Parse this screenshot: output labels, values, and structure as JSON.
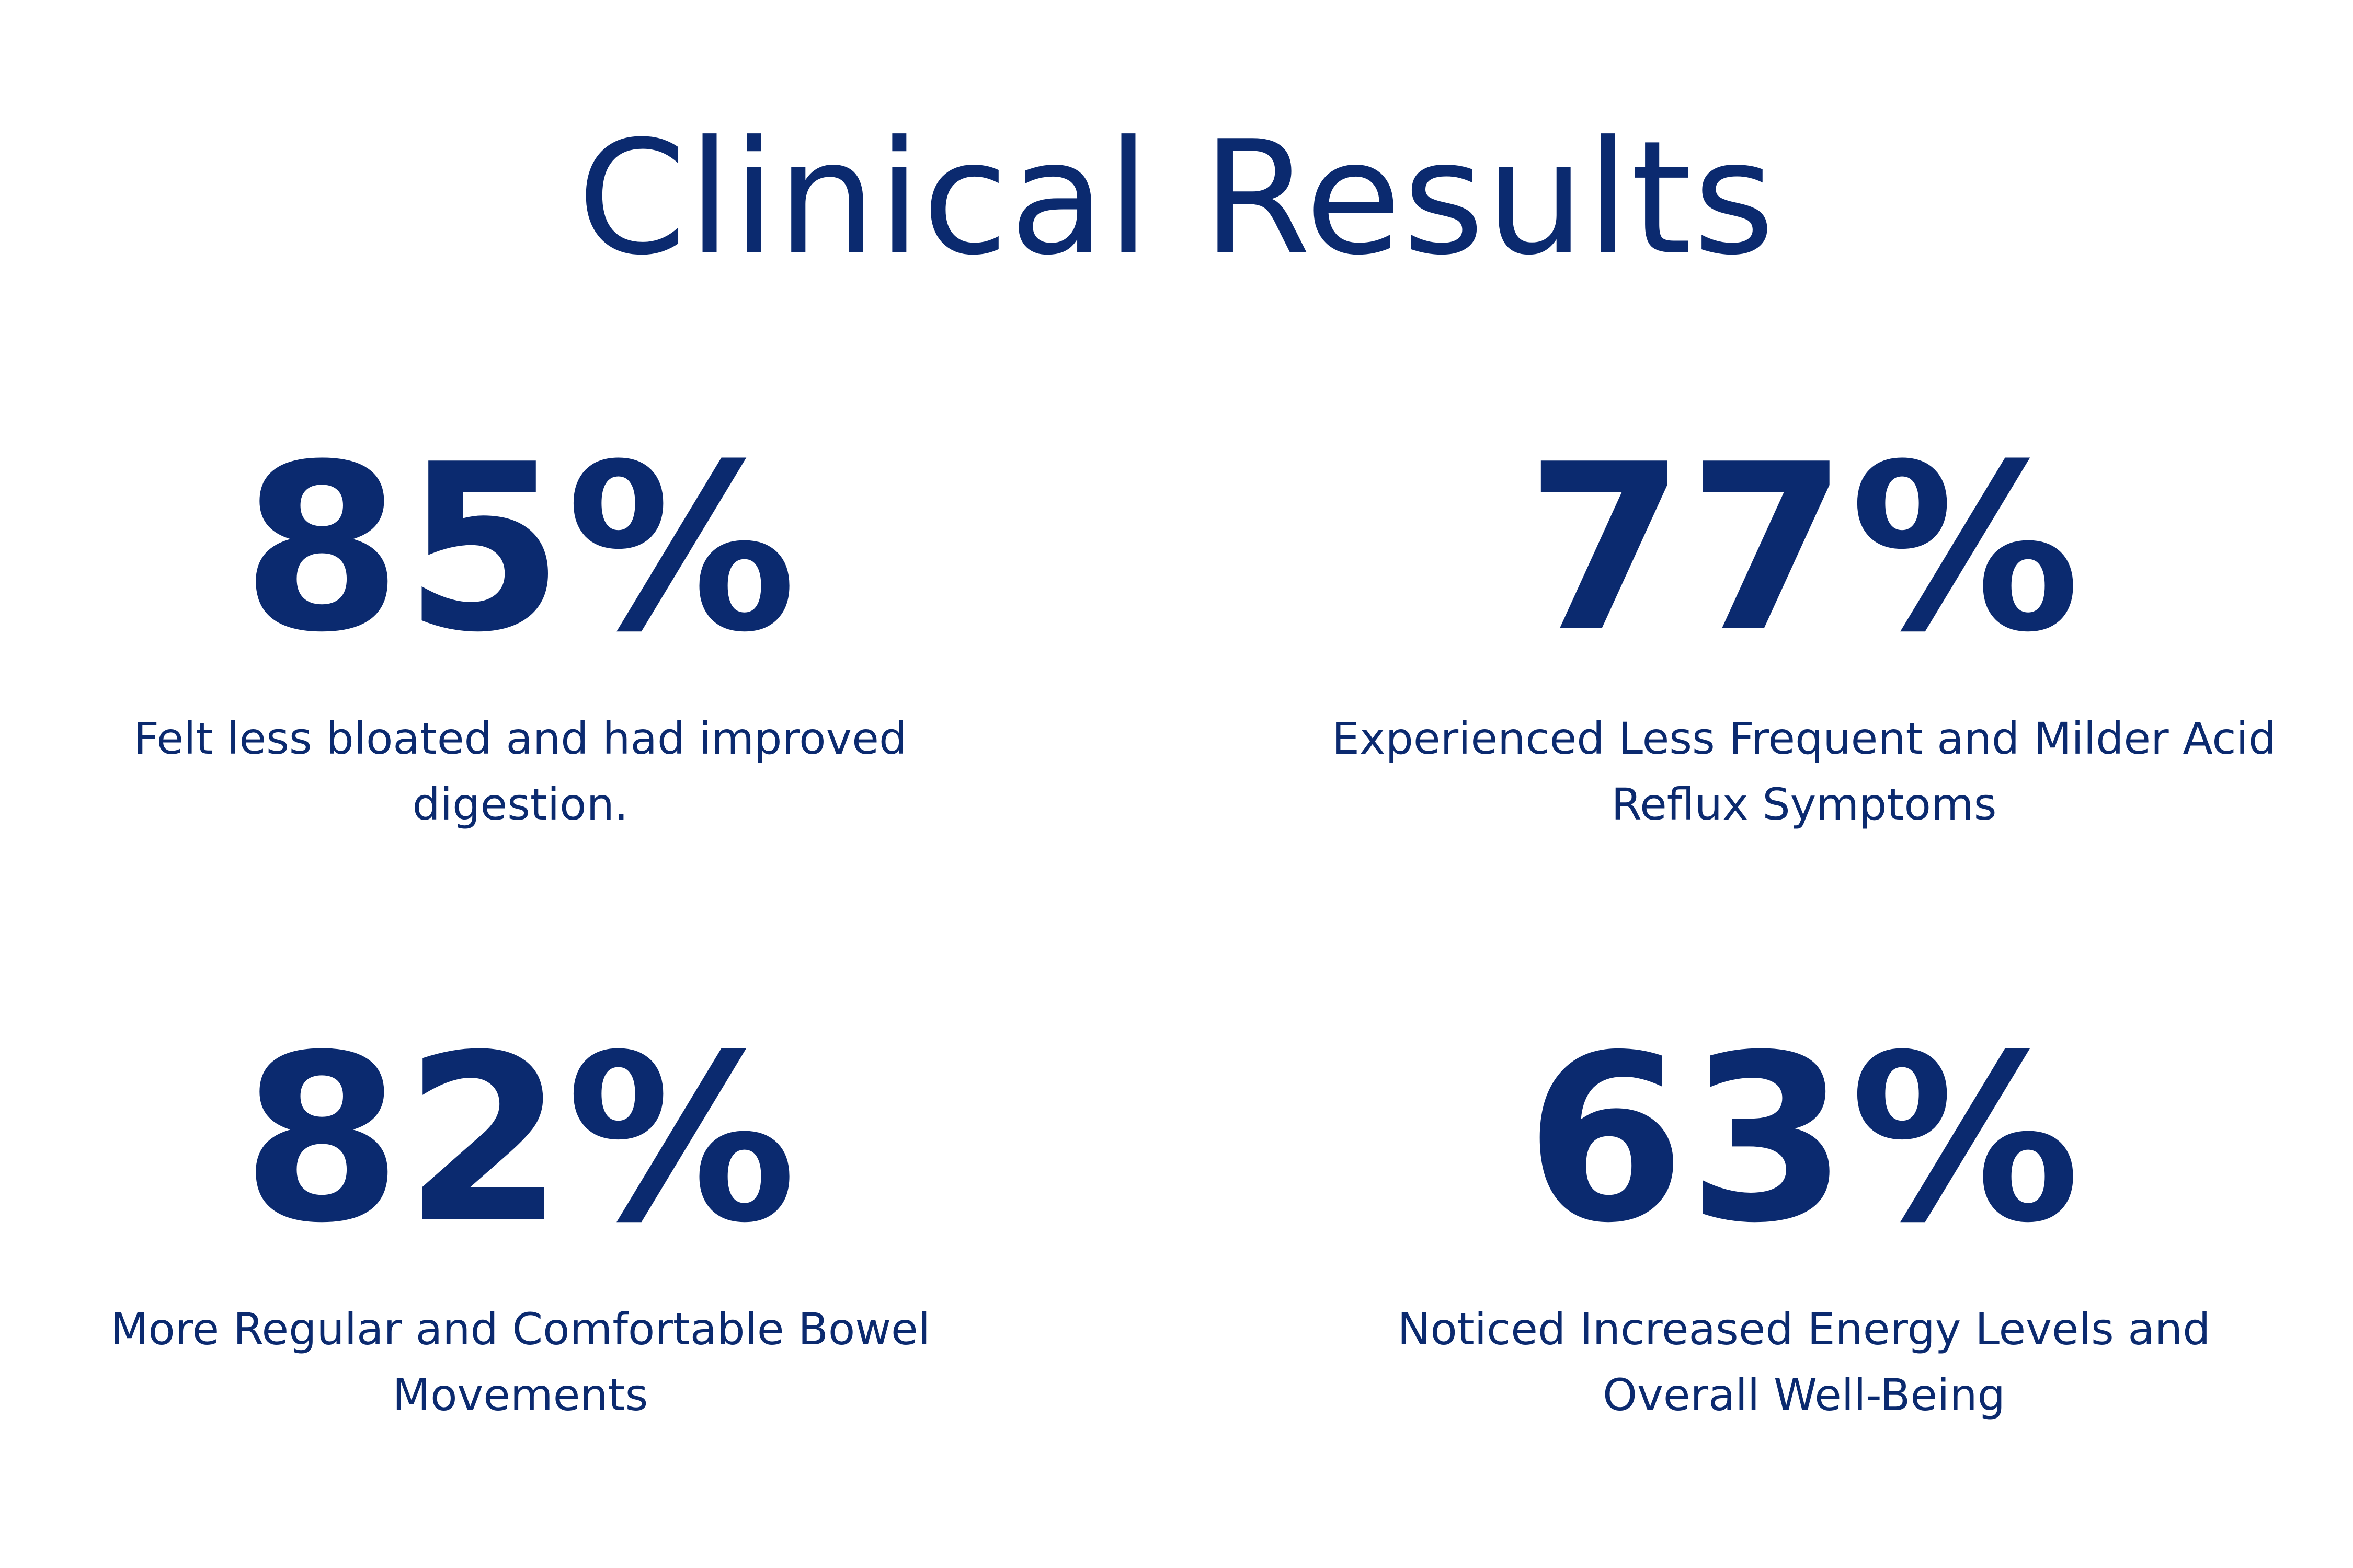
{
  "title": "Clinical Results",
  "stats": [
    {
      "value": "85%",
      "description": [
        "Felt less bloated and had improved",
        "digestion."
      ]
    },
    {
      "value": "77%",
      "description": [
        "Experienced Less Frequent and Milder Acid",
        "Reflux Symptoms"
      ]
    },
    {
      "value": "82%",
      "description": [
        "More Regular and Comfortable Bowel",
        "Movements"
      ]
    },
    {
      "value": "63%",
      "description": [
        "Noticed Increased Energy Levels and",
        "Overall Well-Being"
      ]
    }
  ]
}
